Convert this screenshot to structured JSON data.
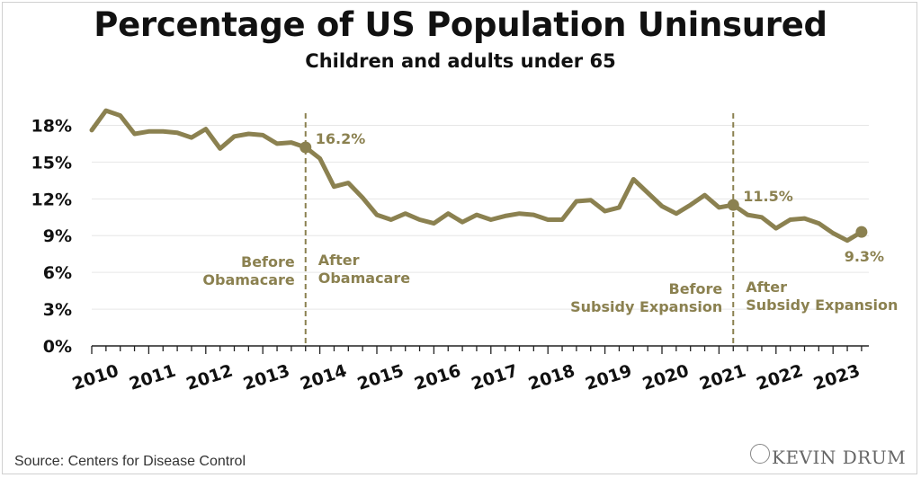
{
  "page": {
    "title": "Percentage of US Population Uninsured",
    "subtitle": "Children and adults under 65",
    "source": "Source: Centers for Disease Control",
    "logo_text": "KEVIN DRUM"
  },
  "colors": {
    "line": "#8b8150",
    "grid": "#e6e6e6",
    "annotation": "#8b8150",
    "text": "#111111"
  },
  "chart_data": {
    "type": "line",
    "title": "Percentage of US Population Uninsured",
    "subtitle": "Children and adults under 65",
    "xlabel": "",
    "ylabel": "",
    "x_tick_labels": [
      "2010",
      "2011",
      "2012",
      "2013",
      "2014",
      "2015",
      "2016",
      "2017",
      "2018",
      "2019",
      "2020",
      "2021",
      "2022",
      "2023"
    ],
    "y_tick_labels": [
      "0%",
      "3%",
      "6%",
      "9%",
      "12%",
      "15%",
      "18%"
    ],
    "ylim": [
      0,
      19
    ],
    "grid": true,
    "series": [
      {
        "values": [
          17.6,
          19.2,
          18.8,
          17.3,
          17.5,
          17.5,
          17.4,
          17.0,
          17.7,
          16.1,
          17.1,
          17.3,
          17.2,
          16.5,
          16.6,
          16.2,
          15.3,
          13.0,
          13.3,
          12.1,
          10.7,
          10.3,
          10.8,
          10.3,
          10.0,
          10.8,
          10.1,
          10.7,
          10.3,
          10.6,
          10.8,
          10.7,
          10.3,
          10.3,
          11.8,
          11.9,
          11.0,
          11.3,
          13.6,
          12.5,
          11.4,
          10.8,
          11.5,
          12.3,
          11.3,
          11.5,
          10.7,
          10.5,
          9.6,
          10.3,
          10.4,
          10.0,
          9.2,
          8.6,
          9.3
        ]
      }
    ],
    "point_labels": [
      {
        "index": 15,
        "text": "16.2%"
      },
      {
        "index": 45,
        "text": "11.5%"
      },
      {
        "index": 54,
        "text": "9.3%"
      }
    ],
    "vlines": [
      {
        "index": 15,
        "left_label": [
          "Before",
          "Obamacare"
        ],
        "right_label": [
          "After",
          "Obamacare"
        ]
      },
      {
        "index": 45,
        "left_label": [
          "Before",
          "Subsidy Expansion"
        ],
        "right_label": [
          "After",
          "Subsidy Expansion"
        ]
      }
    ]
  }
}
